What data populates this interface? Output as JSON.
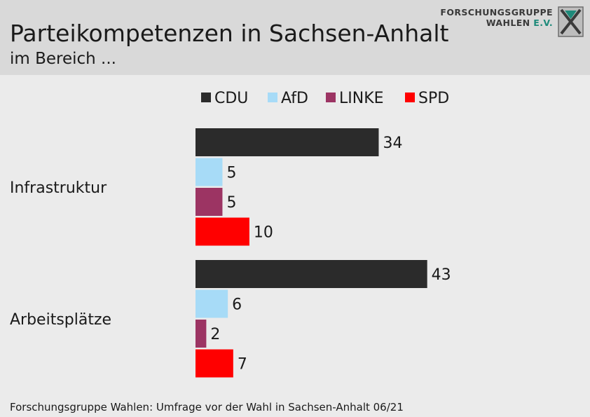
{
  "header": {
    "title": "Parteikompetenzen in Sachsen-Anhalt",
    "subtitle": "im Bereich ...",
    "logo_line1": "FORSCHUNGSGRUPPE",
    "logo_line2_a": "WAHLEN",
    "logo_line2_b": "E.V."
  },
  "footer": {
    "source": "Forschungsgruppe Wahlen: Umfrage vor der Wahl in Sachsen-Anhalt 06/21"
  },
  "colors": {
    "CDU": "#2b2b2b",
    "AfD": "#a7dbf7",
    "LINKE": "#9c3463",
    "SPD": "#ff0000",
    "header_bg": "#d9d9d9",
    "background": "#ebebeb",
    "logo_accent": "#1e8a7a"
  },
  "chart_data": {
    "type": "bar",
    "orientation": "horizontal",
    "categories": [
      "Infrastruktur",
      "Arbeitsplätze"
    ],
    "series": [
      {
        "name": "CDU",
        "values": [
          34,
          43
        ]
      },
      {
        "name": "AfD",
        "values": [
          5,
          6
        ]
      },
      {
        "name": "LINKE",
        "values": [
          5,
          2
        ]
      },
      {
        "name": "SPD",
        "values": [
          10,
          7
        ]
      }
    ],
    "legend_position": "top",
    "data_labels": true,
    "grid": false,
    "xlim": [
      0,
      100
    ]
  }
}
